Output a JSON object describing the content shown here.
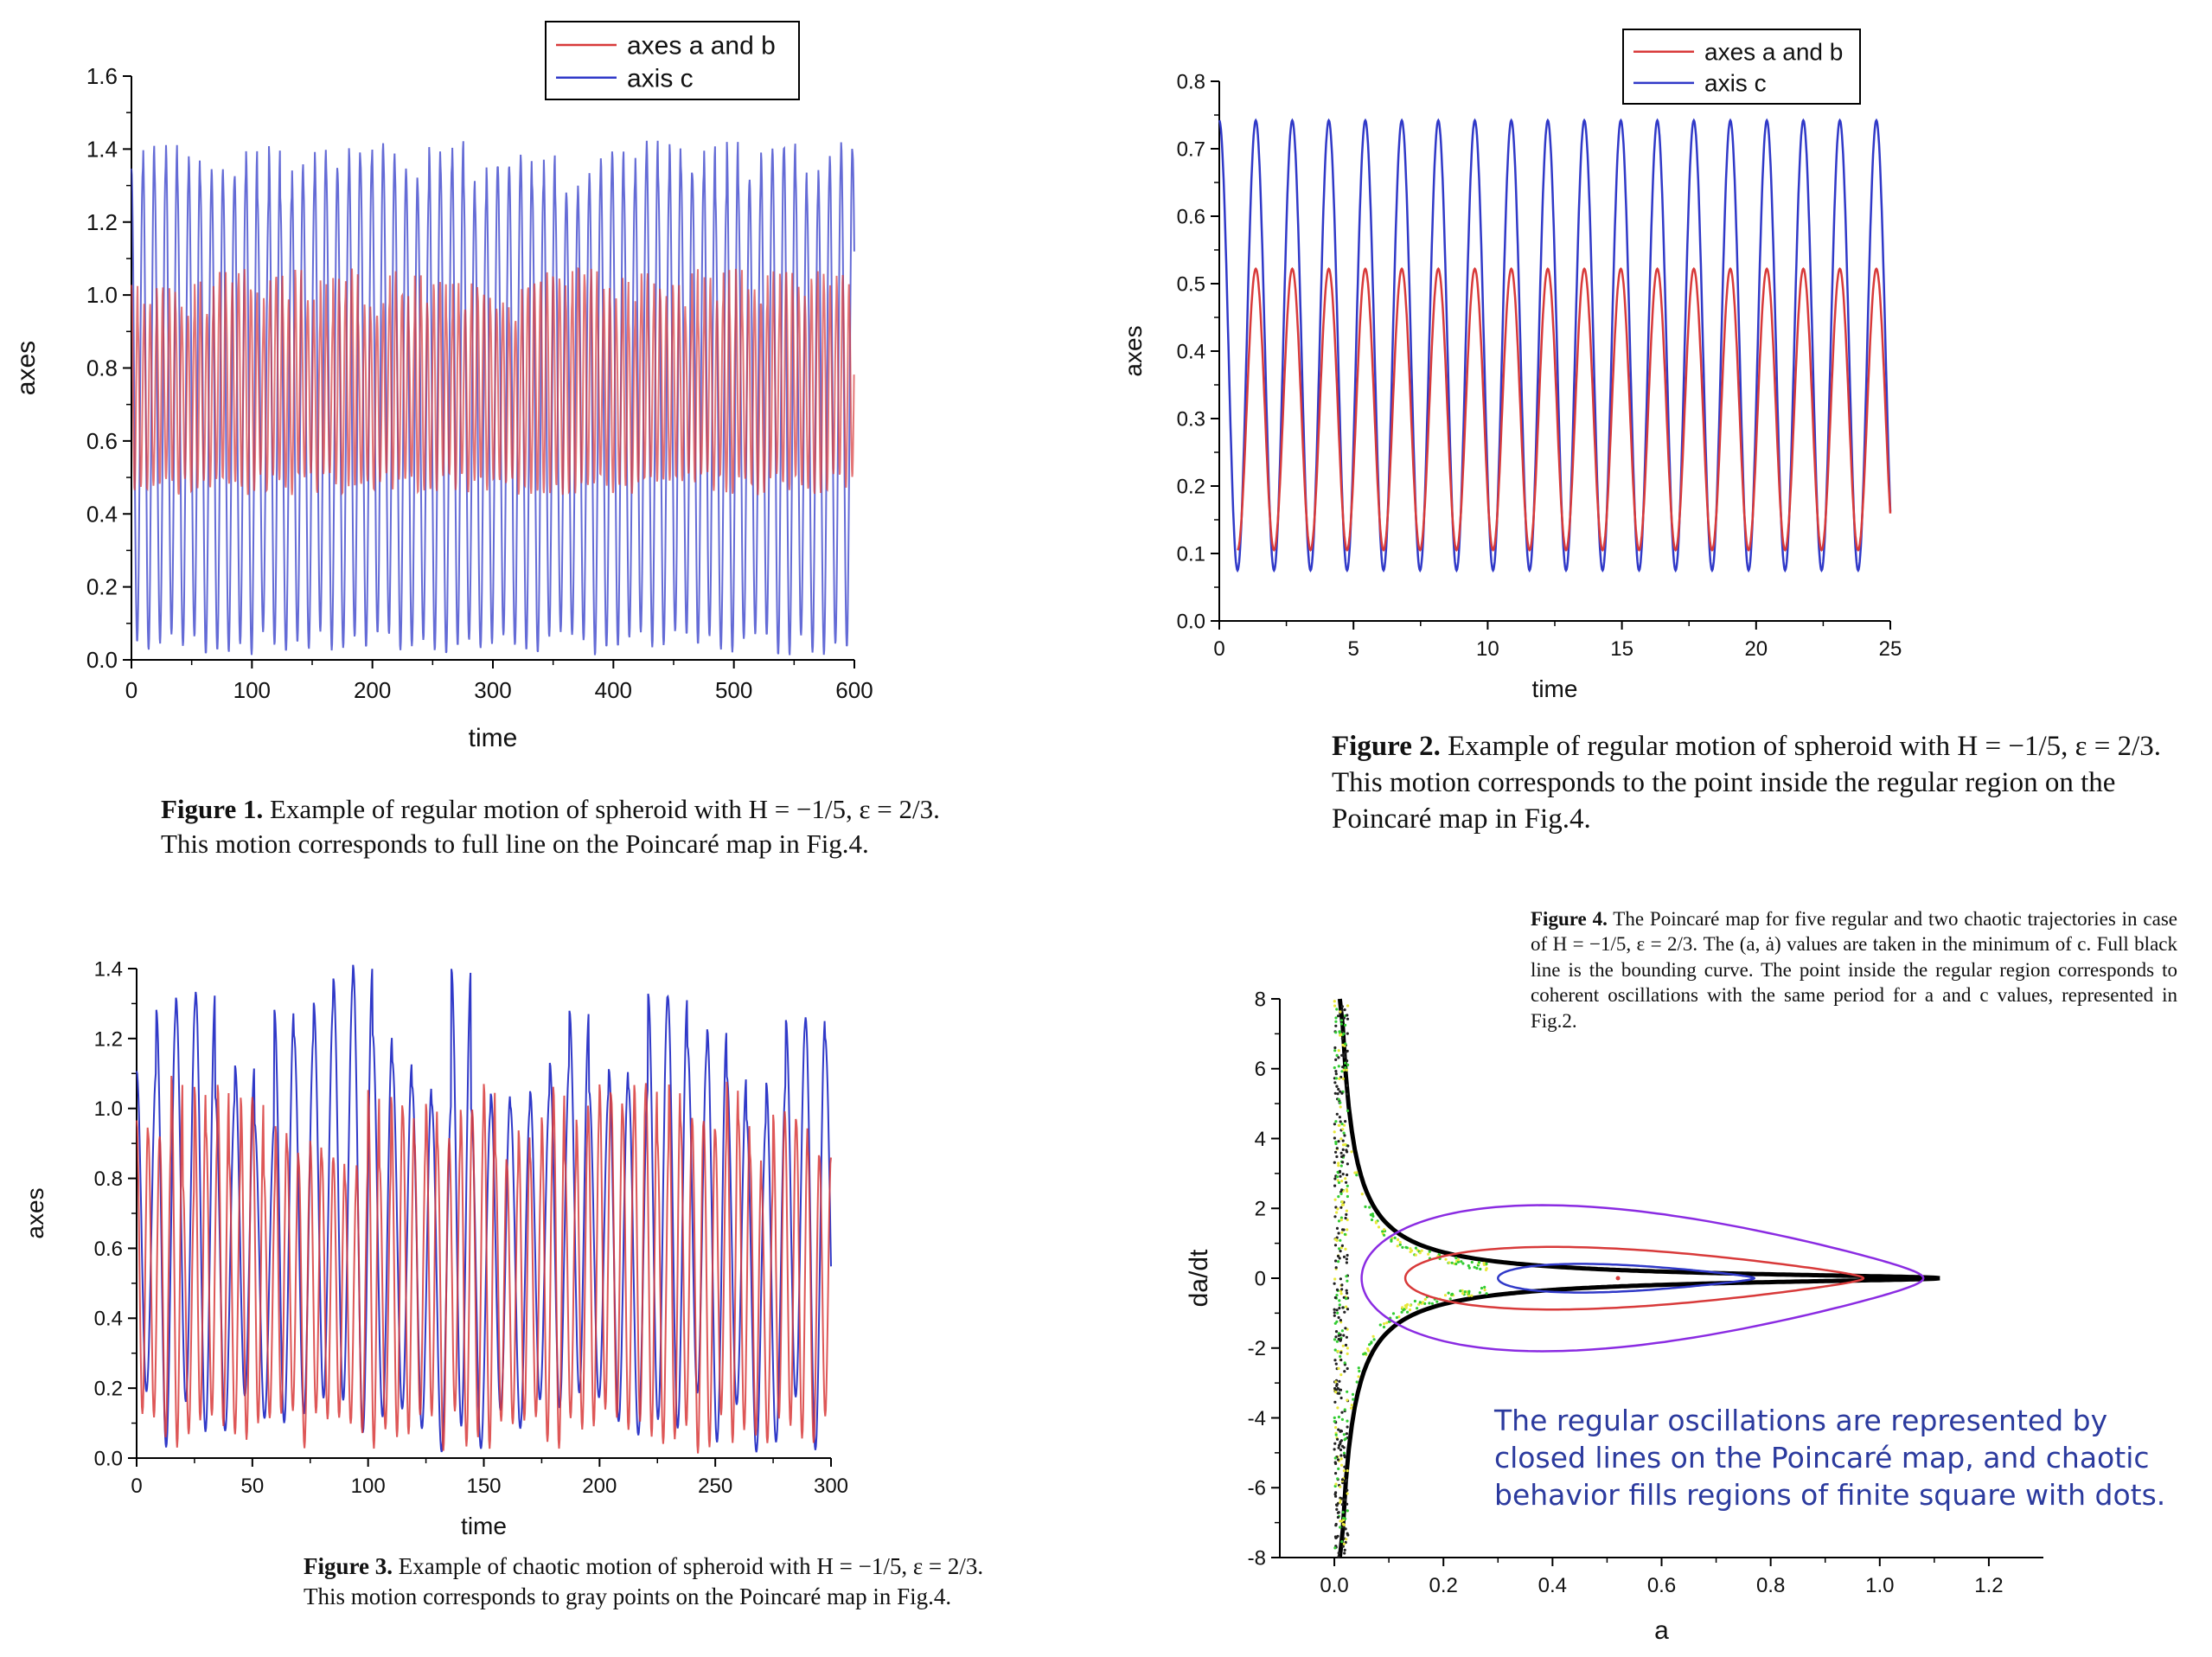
{
  "colors": {
    "red": "#d83a3a",
    "blue": "#3039c8",
    "black": "#000000",
    "purple": "#8a2be2",
    "green": "#33cc33",
    "yellow": "#e8e83a",
    "note": "#2b3a9e"
  },
  "captions": {
    "fig1": {
      "label": "Figure 1.",
      "text": " Example of regular motion of spheroid with H = −1/5, ε = 2/3. This motion corresponds to full line on the Poincaré map in Fig.4."
    },
    "fig2": {
      "label": "Figure 2.",
      "text": " Example of regular motion of spheroid with H = −1/5, ε = 2/3. This motion corresponds to the point inside the regular region on the Poincaré map in Fig.4."
    },
    "fig3": {
      "label": "Figure 3.",
      "text": " Example of chaotic motion of spheroid with H = −1/5, ε = 2/3. This motion corresponds to gray points on the Poincaré map in Fig.4."
    },
    "fig4": {
      "label": "Figure 4.",
      "text": " The Poincaré map for five regular and two chaotic trajectories in case of H = −1/5, ε = 2/3. The (a, ȧ) values are taken in the minimum of c. Full black line is the bounding curve. The point inside the regular region corresponds to coherent oscillations with the same period for a and c values, represented in Fig.2."
    }
  },
  "note": "The regular oscillations are represented by closed lines on the Poincaré map, and chaotic behavior fills regions of finite square with dots.",
  "chart_data": [
    {
      "type": "line",
      "xlabel": "time",
      "ylabel": "axes",
      "xlim": [
        0,
        600
      ],
      "ylim": [
        0,
        1.6
      ],
      "xticks": [
        0,
        100,
        200,
        300,
        400,
        500,
        600
      ],
      "yticks": [
        0.0,
        0.2,
        0.4,
        0.6,
        0.8,
        1.0,
        1.2,
        1.4,
        1.6
      ],
      "legend": {
        "position": "top-right",
        "entries": [
          "axes a and b",
          "axis c"
        ]
      },
      "series": [
        {
          "name": "axes a and b",
          "period": 9.5,
          "min": 0.45,
          "max": 1.08
        },
        {
          "name": "axis c",
          "period": 9.5,
          "min": 0.01,
          "max": 1.43
        }
      ]
    },
    {
      "type": "line",
      "xlabel": "time",
      "ylabel": "axes",
      "xlim": [
        0,
        25
      ],
      "ylim": [
        0,
        0.8
      ],
      "xticks": [
        0,
        5,
        10,
        15,
        20,
        25
      ],
      "yticks": [
        0.0,
        0.1,
        0.2,
        0.3,
        0.4,
        0.5,
        0.6,
        0.7,
        0.8
      ],
      "legend": {
        "position": "top-right",
        "entries": [
          "axes a and b",
          "axis c"
        ]
      },
      "series": [
        {
          "name": "axes a and b",
          "period": 1.36,
          "min": 0.105,
          "max": 0.522
        },
        {
          "name": "axis c",
          "period": 1.36,
          "min": 0.075,
          "max": 0.742
        }
      ]
    },
    {
      "type": "line",
      "xlabel": "time",
      "ylabel": "axes",
      "xlim": [
        0,
        300
      ],
      "ylim": [
        0,
        1.4
      ],
      "xticks": [
        0,
        50,
        100,
        150,
        200,
        250,
        300
      ],
      "yticks": [
        0.0,
        0.2,
        0.4,
        0.6,
        0.8,
        1.0,
        1.2,
        1.4
      ],
      "series": [
        {
          "name": "axes a and b",
          "period": 5.0,
          "min": 0.01,
          "max": 1.1
        },
        {
          "name": "axis c",
          "period": 5.0,
          "min": 0.01,
          "max": 1.43
        }
      ]
    },
    {
      "type": "scatter",
      "xlabel": "a",
      "ylabel": "da/dt",
      "xlim": [
        -0.1,
        1.3
      ],
      "ylim": [
        -8,
        8
      ],
      "xticks": [
        0.0,
        0.2,
        0.4,
        0.6,
        0.8,
        1.0,
        1.2
      ],
      "yticks": [
        -8,
        -6,
        -4,
        -2,
        0,
        2,
        4,
        6,
        8
      ],
      "bounding_curve": {
        "x_max": 1.11,
        "x_min": 0.01
      },
      "closed_curves": [
        {
          "color": "blue",
          "x_range": [
            0.3,
            0.77
          ],
          "y_half": 0.55
        },
        {
          "color": "red",
          "x_range": [
            0.13,
            0.97
          ],
          "y_half": 1.2
        },
        {
          "color": "purple",
          "x_range": [
            0.05,
            1.08
          ],
          "y_half": 2.8
        }
      ],
      "fixed_point": [
        0.52,
        0.0
      ]
    }
  ]
}
